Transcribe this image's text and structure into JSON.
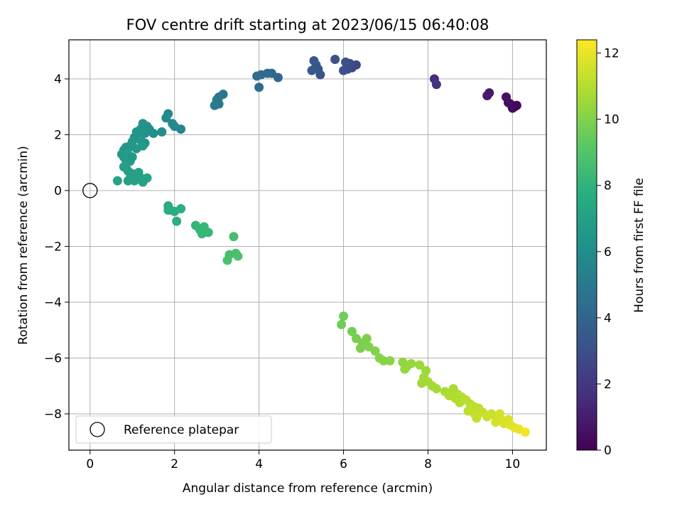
{
  "chart_data": {
    "type": "scatter",
    "title": "FOV centre drift starting at 2023/06/15 06:40:08",
    "xlabel": "Angular distance from reference (arcmin)",
    "ylabel": "Rotation from reference (arcmin)",
    "xlim": [
      -0.5,
      10.8
    ],
    "ylim": [
      -9.3,
      5.4
    ],
    "xticks": [
      0,
      2,
      4,
      6,
      8,
      10
    ],
    "yticks": [
      -8,
      -6,
      -4,
      -2,
      0,
      2,
      4
    ],
    "grid": true,
    "legend": {
      "placement": "lower-left",
      "entries": [
        "Reference platepar"
      ]
    },
    "reference_point": {
      "x": 0,
      "y": 0,
      "label": "Reference platepar"
    },
    "colorbar": {
      "label": "Hours from first FF file",
      "colormap": "viridis",
      "range": [
        0,
        12.4
      ],
      "ticks": [
        0,
        2,
        4,
        6,
        8,
        10,
        12
      ]
    },
    "points": [
      [
        10.05,
        3.0,
        0.1
      ],
      [
        9.95,
        3.1,
        0.3
      ],
      [
        10.0,
        2.95,
        0.4
      ],
      [
        9.9,
        3.15,
        0.5
      ],
      [
        9.85,
        3.35,
        0.6
      ],
      [
        9.45,
        3.5,
        0.8
      ],
      [
        9.4,
        3.4,
        0.9
      ],
      [
        10.1,
        3.05,
        0.2
      ],
      [
        8.15,
        4.0,
        1.6
      ],
      [
        8.2,
        3.8,
        1.8
      ],
      [
        6.3,
        4.5,
        2.6
      ],
      [
        6.2,
        4.4,
        2.7
      ],
      [
        6.15,
        4.55,
        2.8
      ],
      [
        6.1,
        4.35,
        2.9
      ],
      [
        6.0,
        4.3,
        3.0
      ],
      [
        6.05,
        4.6,
        3.0
      ],
      [
        5.8,
        4.7,
        3.1
      ],
      [
        5.45,
        4.15,
        3.2
      ],
      [
        5.4,
        4.35,
        3.3
      ],
      [
        5.35,
        4.5,
        3.3
      ],
      [
        5.3,
        4.65,
        3.4
      ],
      [
        5.25,
        4.3,
        3.5
      ],
      [
        4.45,
        4.05,
        4.0
      ],
      [
        4.3,
        4.2,
        4.1
      ],
      [
        4.2,
        4.2,
        4.2
      ],
      [
        4.05,
        4.15,
        4.3
      ],
      [
        3.95,
        4.1,
        4.4
      ],
      [
        4.0,
        3.7,
        4.4
      ],
      [
        3.15,
        3.45,
        4.8
      ],
      [
        3.05,
        3.35,
        4.9
      ],
      [
        3.0,
        3.25,
        5.0
      ],
      [
        3.05,
        3.1,
        5.0
      ],
      [
        2.95,
        3.05,
        5.1
      ],
      [
        2.15,
        2.2,
        5.6
      ],
      [
        2.0,
        2.3,
        5.7
      ],
      [
        1.95,
        2.4,
        5.8
      ],
      [
        1.85,
        2.75,
        5.8
      ],
      [
        1.8,
        2.6,
        5.9
      ],
      [
        1.7,
        2.1,
        6.0
      ],
      [
        1.5,
        2.05,
        6.1
      ],
      [
        1.4,
        2.2,
        6.1
      ],
      [
        1.35,
        2.3,
        6.2
      ],
      [
        1.3,
        2.05,
        6.2
      ],
      [
        1.25,
        2.4,
        6.3
      ],
      [
        1.2,
        2.2,
        6.3
      ],
      [
        1.15,
        2.0,
        6.3
      ],
      [
        1.1,
        2.1,
        6.4
      ],
      [
        1.05,
        1.9,
        6.4
      ],
      [
        1.3,
        1.7,
        6.4
      ],
      [
        1.25,
        1.6,
        6.5
      ],
      [
        1.0,
        1.75,
        6.5
      ],
      [
        0.95,
        1.6,
        6.5
      ],
      [
        0.9,
        1.5,
        6.6
      ],
      [
        0.85,
        1.55,
        6.6
      ],
      [
        0.8,
        1.45,
        6.6
      ],
      [
        0.75,
        1.3,
        6.7
      ],
      [
        0.8,
        1.2,
        6.7
      ],
      [
        0.85,
        1.1,
        6.7
      ],
      [
        0.9,
        1.3,
        6.8
      ],
      [
        0.95,
        1.05,
        6.8
      ],
      [
        0.85,
        0.9,
        6.8
      ],
      [
        0.8,
        0.85,
        6.9
      ],
      [
        0.9,
        0.7,
        6.9
      ],
      [
        1.0,
        0.6,
        6.9
      ],
      [
        1.1,
        0.55,
        7.0
      ],
      [
        0.95,
        0.45,
        7.0
      ],
      [
        0.9,
        0.35,
        7.0
      ],
      [
        1.05,
        0.35,
        7.1
      ],
      [
        1.2,
        0.45,
        7.1
      ],
      [
        1.25,
        0.3,
        7.1
      ],
      [
        1.35,
        0.45,
        7.2
      ],
      [
        0.65,
        0.35,
        7.2
      ],
      [
        1.15,
        0.65,
        7.1
      ],
      [
        1.0,
        1.2,
        6.7
      ],
      [
        1.1,
        1.5,
        6.6
      ],
      [
        1.2,
        1.8,
        6.5
      ],
      [
        1.85,
        -0.55,
        7.6
      ],
      [
        1.9,
        -0.7,
        7.7
      ],
      [
        2.0,
        -0.75,
        7.7
      ],
      [
        2.15,
        -0.65,
        7.8
      ],
      [
        2.05,
        -1.1,
        7.8
      ],
      [
        1.85,
        -0.7,
        7.7
      ],
      [
        2.5,
        -1.25,
        8.1
      ],
      [
        2.6,
        -1.4,
        8.1
      ],
      [
        2.7,
        -1.3,
        8.2
      ],
      [
        2.65,
        -1.55,
        8.2
      ],
      [
        2.8,
        -1.5,
        8.2
      ],
      [
        3.4,
        -1.65,
        8.6
      ],
      [
        3.3,
        -2.3,
        8.7
      ],
      [
        3.45,
        -2.25,
        8.7
      ],
      [
        3.5,
        -2.35,
        8.8
      ],
      [
        3.25,
        -2.5,
        8.8
      ],
      [
        6.0,
        -4.5,
        9.6
      ],
      [
        5.95,
        -4.8,
        9.6
      ],
      [
        6.2,
        -5.05,
        9.7
      ],
      [
        6.3,
        -5.3,
        9.8
      ],
      [
        6.45,
        -5.45,
        9.8
      ],
      [
        6.55,
        -5.3,
        9.9
      ],
      [
        6.4,
        -5.65,
        9.9
      ],
      [
        6.6,
        -5.6,
        10.0
      ],
      [
        6.75,
        -5.75,
        10.0
      ],
      [
        6.85,
        -6.0,
        10.1
      ],
      [
        6.95,
        -6.1,
        10.1
      ],
      [
        7.1,
        -6.1,
        10.2
      ],
      [
        7.4,
        -6.15,
        10.3
      ],
      [
        7.5,
        -6.3,
        10.3
      ],
      [
        7.45,
        -6.4,
        10.4
      ],
      [
        7.6,
        -6.2,
        10.4
      ],
      [
        7.8,
        -6.25,
        10.5
      ],
      [
        7.95,
        -6.45,
        10.5
      ],
      [
        7.9,
        -6.7,
        10.6
      ],
      [
        7.85,
        -6.9,
        10.6
      ],
      [
        8.0,
        -6.85,
        10.7
      ],
      [
        8.1,
        -7.0,
        10.7
      ],
      [
        8.2,
        -7.1,
        10.7
      ],
      [
        8.4,
        -7.2,
        10.8
      ],
      [
        8.6,
        -7.1,
        10.8
      ],
      [
        8.5,
        -7.35,
        10.9
      ],
      [
        8.7,
        -7.3,
        10.9
      ],
      [
        8.8,
        -7.4,
        11.0
      ],
      [
        8.75,
        -7.6,
        11.0
      ],
      [
        8.9,
        -7.5,
        11.1
      ],
      [
        9.0,
        -7.65,
        11.1
      ],
      [
        9.1,
        -7.75,
        11.2
      ],
      [
        9.2,
        -7.8,
        11.2
      ],
      [
        9.1,
        -8.0,
        11.3
      ],
      [
        9.3,
        -7.95,
        11.3
      ],
      [
        9.5,
        -8.0,
        11.4
      ],
      [
        9.6,
        -8.1,
        11.5
      ],
      [
        9.7,
        -8.0,
        11.5
      ],
      [
        9.75,
        -8.25,
        11.6
      ],
      [
        9.8,
        -8.35,
        11.7
      ],
      [
        9.9,
        -8.2,
        11.7
      ],
      [
        9.95,
        -8.4,
        11.8
      ],
      [
        10.05,
        -8.5,
        11.9
      ],
      [
        10.15,
        -8.55,
        12.0
      ],
      [
        10.3,
        -8.65,
        12.2
      ],
      [
        9.4,
        -8.1,
        11.4
      ],
      [
        9.6,
        -8.3,
        11.6
      ],
      [
        9.15,
        -8.15,
        11.3
      ],
      [
        8.95,
        -7.9,
        11.2
      ],
      [
        8.65,
        -7.45,
        10.9
      ]
    ]
  }
}
